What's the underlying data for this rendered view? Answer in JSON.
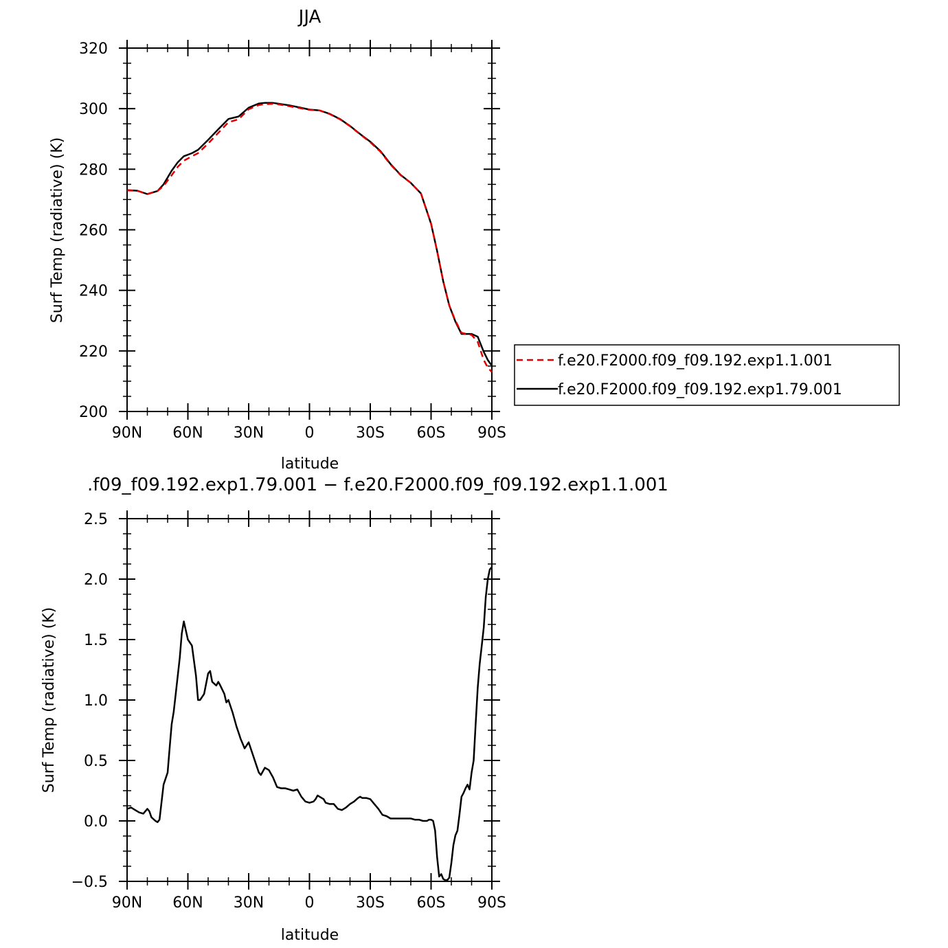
{
  "chart_data": [
    {
      "type": "line",
      "title": "JJA",
      "xlabel": "latitude",
      "ylabel": "Surf Temp (radiative) (K)",
      "xlim": [
        -90,
        90
      ],
      "ylim": [
        200,
        320
      ],
      "x_ticks": [
        -90,
        -60,
        -30,
        0,
        30,
        60,
        90
      ],
      "x_tick_labels": [
        "90N",
        "60N",
        "30N",
        "0",
        "30S",
        "60S",
        "90S"
      ],
      "y_ticks": [
        200,
        220,
        240,
        260,
        280,
        300,
        320
      ],
      "y_tick_labels": [
        "200",
        "220",
        "240",
        "260",
        "280",
        "300",
        "320"
      ],
      "legend_position": "right",
      "series": [
        {
          "name": "f.e20.F2000.f09_f09.192.exp1.1.001",
          "color": "#e00000",
          "dash": "dashed",
          "x": [
            -90,
            -85,
            -80,
            -75,
            -72,
            -68,
            -65,
            -62,
            -58,
            -55,
            -50,
            -45,
            -40,
            -35,
            -30,
            -25,
            -22,
            -18,
            -15,
            -10,
            -5,
            0,
            5,
            10,
            15,
            20,
            25,
            30,
            35,
            40,
            45,
            50,
            55,
            60,
            63,
            66,
            69,
            72,
            75,
            78,
            80,
            83,
            86,
            88,
            90
          ],
          "y": [
            273,
            272.9,
            271.8,
            272.8,
            274.5,
            278,
            280.8,
            282.8,
            284.3,
            285.3,
            288.5,
            292,
            295.5,
            296.5,
            299.8,
            301.2,
            301.5,
            301.6,
            301.4,
            300.8,
            300.2,
            299.6,
            299.4,
            298.2,
            296.5,
            294.2,
            291.5,
            288.9,
            285.8,
            281.5,
            278,
            275.5,
            272,
            262,
            253,
            243,
            235,
            230,
            226,
            225.5,
            225.3,
            223,
            217,
            214.5,
            213
          ]
        },
        {
          "name": "f.e20.F2000.f09_f09.192.exp1.79.001",
          "color": "#000000",
          "dash": "solid",
          "x": [
            -90,
            -85,
            -80,
            -75,
            -72,
            -68,
            -65,
            -62,
            -58,
            -55,
            -50,
            -45,
            -40,
            -35,
            -30,
            -25,
            -22,
            -18,
            -15,
            -10,
            -5,
            0,
            5,
            10,
            15,
            20,
            25,
            30,
            35,
            40,
            45,
            50,
            55,
            60,
            63,
            66,
            69,
            72,
            75,
            78,
            80,
            83,
            86,
            88,
            90
          ],
          "y": [
            273.1,
            272.9,
            271.8,
            272.8,
            275,
            279.5,
            282.3,
            284.3,
            285.3,
            286.4,
            289.7,
            293.2,
            296.6,
            297.4,
            300.3,
            301.7,
            301.9,
            301.9,
            301.6,
            301.1,
            300.4,
            299.7,
            299.4,
            298.3,
            296.6,
            294.3,
            291.6,
            289.1,
            286,
            281.7,
            278.1,
            275.5,
            272,
            262,
            253,
            243,
            235,
            229.7,
            225.6,
            225.6,
            225.6,
            224.7,
            219.7,
            217,
            215.1
          ]
        }
      ]
    },
    {
      "type": "line",
      "title": ".f09_f09.192.exp1.79.001 − f.e20.F2000.f09_f09.192.exp1.1.001",
      "xlabel": "latitude",
      "ylabel": "Surf Temp (radiative) (K)",
      "xlim": [
        -90,
        90
      ],
      "ylim": [
        -0.5,
        2.5
      ],
      "x_ticks": [
        -90,
        -60,
        -30,
        0,
        30,
        60,
        90
      ],
      "x_tick_labels": [
        "90N",
        "60N",
        "30N",
        "0",
        "30S",
        "60S",
        "90S"
      ],
      "y_ticks": [
        -0.5,
        0,
        0.5,
        1,
        1.5,
        2,
        2.5
      ],
      "y_tick_labels": [
        "−0.5",
        "0.0",
        "0.5",
        "1.0",
        "1.5",
        "2.0",
        "2.5"
      ],
      "series": [
        {
          "color": "#000000",
          "dash": "solid",
          "x": [
            -90,
            -88,
            -86,
            -84,
            -82,
            -80,
            -79,
            -78,
            -76,
            -75,
            -74,
            -72,
            -70,
            -69,
            -68,
            -67,
            -66,
            -64,
            -63,
            -62,
            -60,
            -58,
            -56,
            -55,
            -54,
            -52,
            -50,
            -49,
            -48,
            -46,
            -45,
            -44,
            -42,
            -41,
            -40,
            -38,
            -36,
            -35,
            -34,
            -32,
            -30,
            -28,
            -26,
            -25,
            -24,
            -22,
            -20,
            -18,
            -16,
            -14,
            -12,
            -10,
            -8,
            -6,
            -4,
            -2,
            0,
            2,
            3,
            4,
            5,
            7,
            8,
            10,
            12,
            14,
            16,
            18,
            20,
            22,
            24,
            25,
            26,
            28,
            30,
            32,
            34,
            36,
            38,
            40,
            42,
            45,
            48,
            50,
            52,
            54,
            56,
            58,
            59,
            60,
            61,
            62,
            63,
            64,
            65,
            66,
            67,
            68,
            69,
            70,
            71,
            72,
            73,
            74,
            75,
            76,
            77,
            78,
            79,
            80,
            81,
            82,
            83,
            84,
            85,
            86,
            87,
            88,
            89,
            90
          ],
          "y": [
            0.1,
            0.11,
            0.09,
            0.07,
            0.06,
            0.1,
            0.08,
            0.03,
            0.0,
            -0.01,
            0.01,
            0.3,
            0.4,
            0.6,
            0.8,
            0.9,
            1.05,
            1.35,
            1.55,
            1.65,
            1.5,
            1.45,
            1.2,
            1.0,
            1.0,
            1.05,
            1.22,
            1.24,
            1.15,
            1.12,
            1.15,
            1.12,
            1.05,
            0.98,
            1.0,
            0.9,
            0.78,
            0.73,
            0.68,
            0.6,
            0.65,
            0.55,
            0.45,
            0.4,
            0.38,
            0.44,
            0.42,
            0.36,
            0.28,
            0.27,
            0.27,
            0.26,
            0.25,
            0.26,
            0.2,
            0.16,
            0.15,
            0.16,
            0.18,
            0.21,
            0.2,
            0.18,
            0.15,
            0.14,
            0.14,
            0.1,
            0.09,
            0.11,
            0.14,
            0.16,
            0.19,
            0.2,
            0.19,
            0.19,
            0.18,
            0.14,
            0.1,
            0.05,
            0.04,
            0.02,
            0.02,
            0.02,
            0.02,
            0.02,
            0.01,
            0.01,
            0.0,
            0.0,
            0.01,
            0.01,
            0.0,
            -0.08,
            -0.3,
            -0.46,
            -0.44,
            -0.48,
            -0.49,
            -0.49,
            -0.47,
            -0.35,
            -0.2,
            -0.12,
            -0.08,
            0.05,
            0.2,
            0.23,
            0.27,
            0.3,
            0.26,
            0.4,
            0.5,
            0.8,
            1.1,
            1.3,
            1.45,
            1.6,
            1.85,
            2.0,
            2.08,
            2.1
          ]
        }
      ]
    }
  ]
}
